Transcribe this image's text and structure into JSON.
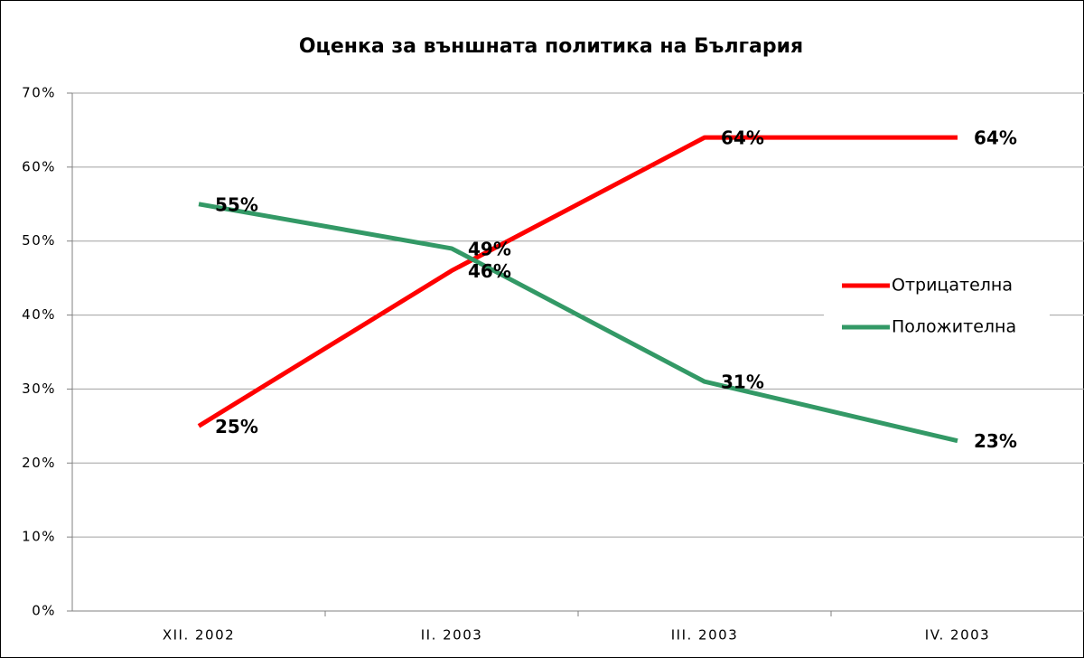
{
  "chart_data": {
    "type": "line",
    "title": "Оценка за външната политика на България",
    "categories": [
      "XII. 2002",
      "II. 2003",
      "III. 2003",
      "IV. 2003"
    ],
    "series": [
      {
        "name": "Отрицателна",
        "color": "#ff0000",
        "values": [
          25,
          46,
          64,
          64
        ],
        "value_labels": [
          "25%",
          "46%",
          "64%",
          "64%"
        ]
      },
      {
        "name": "Положителна",
        "color": "#339966",
        "values": [
          55,
          49,
          31,
          23
        ],
        "value_labels": [
          "55%",
          "49%",
          "31%",
          "23%"
        ]
      }
    ],
    "ylim": [
      0,
      70
    ],
    "yticks": [
      {
        "value": 0,
        "label": "0%"
      },
      {
        "value": 10,
        "label": "10%"
      },
      {
        "value": 20,
        "label": "20%"
      },
      {
        "value": 30,
        "label": "30%"
      },
      {
        "value": 40,
        "label": "40%"
      },
      {
        "value": 50,
        "label": "50%"
      },
      {
        "value": 60,
        "label": "60%"
      },
      {
        "value": 70,
        "label": "70%"
      }
    ],
    "grid": true,
    "legend": "right"
  }
}
